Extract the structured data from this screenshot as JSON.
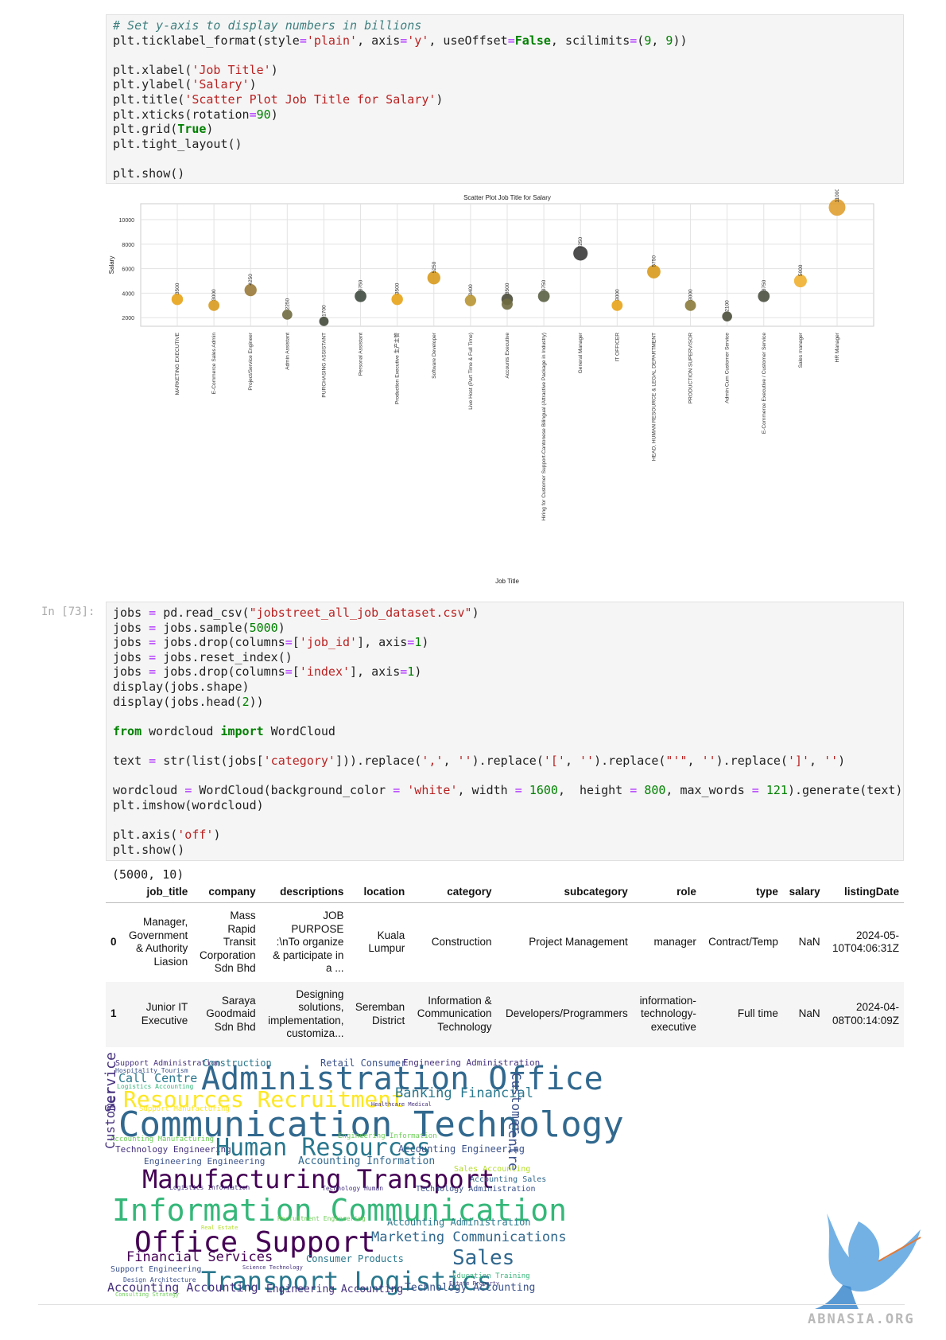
{
  "cell1": {
    "lines": [
      "# Set y-axis to display numbers in billions",
      "plt.ticklabel_format(style='plain', axis='y', useOffset=False, scilimits=(9, 9))",
      "",
      "plt.xlabel('Job Title')",
      "plt.ylabel('Salary')",
      "plt.title('Scatter Plot Job Title for Salary')",
      "plt.xticks(rotation=90)",
      "plt.grid(True)",
      "plt.tight_layout()",
      "",
      "plt.show()"
    ]
  },
  "chart_data": {
    "type": "scatter",
    "title": "Scatter Plot Job Title for Salary",
    "xlabel": "Job Title",
    "ylabel": "Salary",
    "ylim": [
      1300,
      11300
    ],
    "yticks": [
      2000,
      4000,
      6000,
      8000,
      10000
    ],
    "grid": true,
    "categories": [
      "MARKETING EXECUTIVE",
      "E-Commerce Sales Admin",
      "Project/Service Engineer",
      "Admin Assistant",
      "PURCHASING ASSISTANT",
      "Personal Assistant",
      "Production Executive 生产主管",
      "Software Developer",
      "Live Host (Part Time & Full Time)",
      "Accounts Executive",
      "Hiring for Customer Support-Cantonese Bilingual (Attractive Package in Industry)",
      "General Manager",
      "IT OFFICER",
      "HEAD, HUMAN RESOURCE & LEGAL DEPARTMENT",
      "PRODUCTION SUPERVISOR",
      "Admin Cum Customer Service",
      "E-Commerce Executive / Customer Service",
      "Sales manager",
      "HR Manager"
    ],
    "points": [
      {
        "cat": 0,
        "y": 3500,
        "label": "3500",
        "color": "#e8a317"
      },
      {
        "cat": 1,
        "y": 3000,
        "label": "3000",
        "color": "#d89a1c"
      },
      {
        "cat": 2,
        "y": 4250,
        "label": "4250",
        "color": "#9a7a38"
      },
      {
        "cat": 3,
        "y": 2250,
        "label": "2250",
        "color": "#6f6a40"
      },
      {
        "cat": 4,
        "y": 1700,
        "label": "1700",
        "color": "#444a3a"
      },
      {
        "cat": 5,
        "y": 3750,
        "label": "3750",
        "color": "#3f4a3f"
      },
      {
        "cat": 6,
        "y": 3500,
        "label": "3500",
        "color": "#e8a317"
      },
      {
        "cat": 7,
        "y": 5250,
        "label": "5250",
        "color": "#d89a1c"
      },
      {
        "cat": 8,
        "y": 3400,
        "label": "3400",
        "color": "#b89533"
      },
      {
        "cat": 9,
        "y": 3500,
        "label": "3500",
        "color": "#4a4a3a"
      },
      {
        "cat": 9,
        "y": 3100,
        "label": "",
        "color": "#6f6a40"
      },
      {
        "cat": 10,
        "y": 3750,
        "label": "3750",
        "color": "#5a6044"
      },
      {
        "cat": 11,
        "y": 7250,
        "label": "7250",
        "color": "#3a3a3a"
      },
      {
        "cat": 12,
        "y": 3000,
        "label": "3000",
        "color": "#e8a317"
      },
      {
        "cat": 13,
        "y": 5750,
        "label": "5750",
        "color": "#d89a1c"
      },
      {
        "cat": 14,
        "y": 3000,
        "label": "3000",
        "color": "#8a7a3a"
      },
      {
        "cat": 15,
        "y": 2100,
        "label": "2100",
        "color": "#4a4e3a"
      },
      {
        "cat": 16,
        "y": 3750,
        "label": "3750",
        "color": "#4a5040"
      },
      {
        "cat": 17,
        "y": 5000,
        "label": "5000",
        "color": "#f0b030"
      },
      {
        "cat": 18,
        "y": 11000,
        "label": "11000",
        "color": "#e0a030"
      }
    ]
  },
  "cell2": {
    "prompt": "In [73]:",
    "lines": [
      "jobs = pd.read_csv(\"jobstreet_all_job_dataset.csv\")",
      "jobs = jobs.sample(5000)",
      "jobs = jobs.drop(columns=['job_id'], axis=1)",
      "jobs = jobs.reset_index()",
      "jobs = jobs.drop(columns=['index'], axis=1)",
      "display(jobs.shape)",
      "display(jobs.head(2))",
      "",
      "from wordcloud import WordCloud",
      "",
      "text = str(list(jobs['category'])).replace(',', '').replace('[', '').replace(\"'\", '').replace(']', '')",
      "",
      "wordcloud = WordCloud(background_color = 'white', width = 1600,  height = 800, max_words = 121).generate(text)",
      "plt.imshow(wordcloud)",
      "",
      "plt.axis('off')",
      "plt.show()"
    ]
  },
  "output_shape": "(5000, 10)",
  "table": {
    "columns": [
      "",
      "job_title",
      "company",
      "descriptions",
      "location",
      "category",
      "subcategory",
      "role",
      "type",
      "salary",
      "listingDate"
    ],
    "rows": [
      {
        "index": "0",
        "job_title": [
          "Manager,",
          "Government",
          "& Authority",
          "Liasion"
        ],
        "company": [
          "Mass",
          "Rapid",
          "Transit",
          "Corporation",
          "Sdn Bhd"
        ],
        "descriptions": [
          "JOB",
          "PURPOSE",
          ":\\nTo organize",
          "& participate in",
          "a ..."
        ],
        "location": [
          "Kuala",
          "Lumpur"
        ],
        "category": [
          "Construction"
        ],
        "subcategory": [
          "Project Management"
        ],
        "role": [
          "manager"
        ],
        "type": [
          "Contract/Temp"
        ],
        "salary": [
          "NaN"
        ],
        "listingDate": [
          "2024-05-",
          "10T04:06:31Z"
        ]
      },
      {
        "index": "1",
        "job_title": [
          "Junior IT",
          "Executive"
        ],
        "company": [
          "Saraya",
          "Goodmaid",
          "Sdn Bhd"
        ],
        "descriptions": [
          "Designing",
          "solutions,",
          "implementation,",
          "customiza..."
        ],
        "location": [
          "Seremban",
          "District"
        ],
        "category": [
          "Information &",
          "Communication",
          "Technology"
        ],
        "subcategory": [
          "Developers/Programmers"
        ],
        "role": [
          "information-",
          "technology-",
          "executive"
        ],
        "type": [
          "Full time"
        ],
        "salary": [
          "NaN"
        ],
        "listingDate": [
          "2024-04-",
          "08T00:14:09Z"
        ]
      }
    ]
  },
  "wordcloud": {
    "words": [
      {
        "t": "Support Administration",
        "s": 10,
        "c": "#46327e"
      },
      {
        "t": "Construction",
        "s": 12,
        "c": "#2a788e"
      },
      {
        "t": "Retail Consumer",
        "s": 12,
        "c": "#3b528b"
      },
      {
        "t": "Engineering Administration",
        "s": 11,
        "c": "#46327e"
      },
      {
        "t": "Hospitality Tourism",
        "s": 8,
        "c": "#3b528b"
      },
      {
        "t": "Call Centre",
        "s": 15,
        "c": "#2a788e"
      },
      {
        "t": "Administration Office",
        "s": 40,
        "c": "#31688e"
      },
      {
        "t": "Logistics Accounting",
        "s": 8,
        "c": "#35b779"
      },
      {
        "t": "Customer",
        "s": 16,
        "c": "#3b528b"
      },
      {
        "t": "Resources Recruitment",
        "s": 28,
        "c": "#fde725"
      },
      {
        "t": "Banking Financial",
        "s": 17,
        "c": "#2a788e"
      },
      {
        "t": "Healthcare Medical",
        "s": 7,
        "c": "#46327e"
      },
      {
        "t": "Support Manufacturing",
        "s": 9,
        "c": "#fde725"
      },
      {
        "t": "Communication Technology",
        "s": 44,
        "c": "#31688e"
      },
      {
        "t": "Service",
        "s": 18,
        "c": "#46327e"
      },
      {
        "t": "Accounting Manufacturing",
        "s": 9,
        "c": "#6ece58"
      },
      {
        "t": "Engineering Information",
        "s": 9,
        "c": "#6ece58"
      },
      {
        "t": "Technology Engineering",
        "s": 11,
        "c": "#46327e"
      },
      {
        "t": "Human Resources",
        "s": 30,
        "c": "#2a788e"
      },
      {
        "t": "Accounting Engineering",
        "s": 12,
        "c": "#3b528b"
      },
      {
        "t": "Centre",
        "s": 17,
        "c": "#3b528b"
      },
      {
        "t": "Engineering Engineering",
        "s": 11,
        "c": "#3b528b"
      },
      {
        "t": "Accounting Information",
        "s": 13,
        "c": "#31688e"
      },
      {
        "t": "Customer",
        "s": 16,
        "c": "#46327e"
      },
      {
        "t": "Sales Accounting",
        "s": 10,
        "c": "#b5de2b"
      },
      {
        "t": "Manufacturing Transport",
        "s": 32,
        "c": "#440154"
      },
      {
        "t": "Accounting Sales",
        "s": 10,
        "c": "#31688e"
      },
      {
        "t": "Logistics Information",
        "s": 8,
        "c": "#46327e"
      },
      {
        "t": "Technology Human",
        "s": 8,
        "c": "#46327e"
      },
      {
        "t": "Technology Administration",
        "s": 10,
        "c": "#3b528b"
      },
      {
        "t": "Information Communication",
        "s": 38,
        "c": "#35b779"
      },
      {
        "t": "Recruitment Engineering",
        "s": 8,
        "c": "#6ece58"
      },
      {
        "t": "Accounting Administration",
        "s": 12,
        "c": "#2a788e"
      },
      {
        "t": "Real Estate",
        "s": 7,
        "c": "#b5de2b"
      },
      {
        "t": "Office Support",
        "s": 36,
        "c": "#440154"
      },
      {
        "t": "Marketing Communications",
        "s": 17,
        "c": "#31688e"
      },
      {
        "t": "Financial Services",
        "s": 17,
        "c": "#440154"
      },
      {
        "t": "Consumer Products",
        "s": 12,
        "c": "#2a788e"
      },
      {
        "t": "Sales",
        "s": 26,
        "c": "#31688e"
      },
      {
        "t": "Support Engineering",
        "s": 10,
        "c": "#3b528b"
      },
      {
        "t": "Science Technology",
        "s": 7,
        "c": "#46327e"
      },
      {
        "t": "Transport Logistics",
        "s": 32,
        "c": "#2a788e"
      },
      {
        "t": "Education Training",
        "s": 9,
        "c": "#35b779"
      },
      {
        "t": "Design Architecture",
        "s": 8,
        "c": "#3b528b"
      },
      {
        "t": "Estate Property",
        "s": 7,
        "c": "#46327e"
      },
      {
        "t": "Accounting Accounting",
        "s": 15,
        "c": "#46327e"
      },
      {
        "t": "Engineering Accounting",
        "s": 13,
        "c": "#46327e"
      },
      {
        "t": "Technology Accounting",
        "s": 13,
        "c": "#3b528b"
      },
      {
        "t": "Consulting Strategy",
        "s": 7,
        "c": "#6ece58"
      }
    ]
  },
  "watermark": {
    "text": "ABNASIA.ORG",
    "color": "#4a90d9"
  }
}
